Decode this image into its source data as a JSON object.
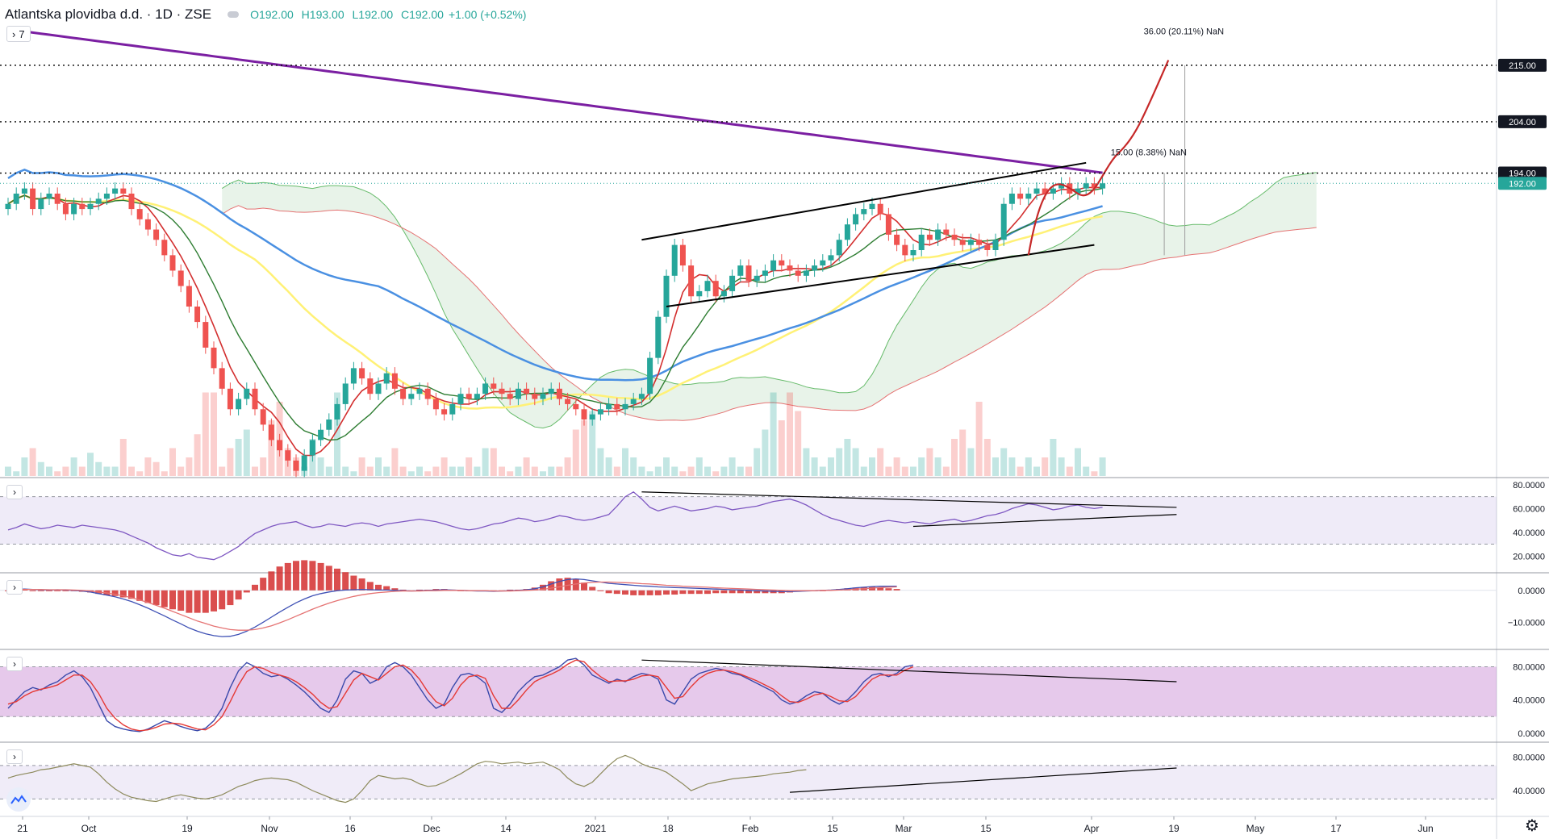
{
  "legend": {
    "symbol": "Atlantska plovidba d.d. · 1D · ZSE",
    "open": "O192.00",
    "high": "H193.00",
    "low": "L192.00",
    "close": "C192.00",
    "change": "+1.00 (+0.52%)"
  },
  "indicator_toggle": {
    "label": "7"
  },
  "colors": {
    "up": "#26a69a",
    "down": "#ef5350",
    "ma200": "#7b1fa2",
    "ma100": "#4a90e2",
    "ma50": "#fff176",
    "ema_fast": "#d32f2f",
    "ema_slow": "#2e7d32",
    "price_line": "#26a69a",
    "projection": "#c62828"
  },
  "chart_data": [
    {
      "type": "candlestick",
      "pane": "price",
      "title": "Atlantska plovidba d.d. · 1D · ZSE",
      "x_ticks": [
        "21",
        "Oct",
        "19",
        "Nov",
        "16",
        "Dec",
        "14",
        "2021",
        "18",
        "Feb",
        "15",
        "Mar",
        "15",
        "Apr",
        "19",
        "May",
        "17",
        "Jun"
      ],
      "price_labels": [
        {
          "label": "215.00",
          "value": 215,
          "style": "dotted"
        },
        {
          "label": "204.00",
          "value": 204,
          "style": "dotted"
        },
        {
          "label": "194.00",
          "value": 194,
          "style": "dotted"
        },
        {
          "label": "192.00",
          "value": 192,
          "style": "last-price"
        }
      ],
      "annotations": [
        {
          "text": "36.00 (20.11%) NaN",
          "target": 215
        },
        {
          "text": "15.00 (8.38%) NaN",
          "target": 194
        }
      ],
      "ylim": [
        135,
        223
      ],
      "close": [
        188,
        190,
        191,
        187,
        189,
        190,
        188,
        186,
        188,
        187,
        188,
        189,
        190,
        191,
        190,
        187,
        185,
        183,
        181,
        178,
        175,
        172,
        168,
        165,
        160,
        156,
        152,
        148,
        150,
        152,
        148,
        145,
        142,
        140,
        138,
        136,
        139,
        142,
        144,
        146,
        149,
        153,
        156,
        154,
        151,
        153,
        155,
        152,
        150,
        151,
        152,
        150,
        148,
        147,
        149,
        151,
        150,
        151,
        153,
        152,
        151,
        150,
        152,
        151,
        150,
        151,
        152,
        150,
        149,
        148,
        146,
        147,
        148,
        149,
        148,
        149,
        150,
        151,
        158,
        166,
        174,
        180,
        176,
        170,
        171,
        173,
        170,
        171,
        174,
        176,
        173,
        174,
        175,
        177,
        176,
        175,
        174,
        175,
        176,
        177,
        178,
        181,
        184,
        186,
        187,
        188,
        186,
        182,
        180,
        178,
        179,
        182,
        181,
        183,
        182,
        181,
        180,
        181,
        180,
        179,
        181,
        188,
        190,
        189,
        190,
        191,
        190,
        191,
        192,
        190,
        191,
        192,
        191,
        192
      ],
      "volume_relative": [
        0.1,
        0.05,
        0.2,
        0.3,
        0.15,
        0.1,
        0.05,
        0.1,
        0.2,
        0.1,
        0.25,
        0.15,
        0.1,
        0.1,
        0.4,
        0.1,
        0.05,
        0.2,
        0.15,
        0.05,
        0.3,
        0.1,
        0.2,
        0.45,
        0.9,
        0.9,
        0.1,
        0.3,
        0.4,
        0.5,
        0.1,
        0.2,
        0.6,
        0.8,
        0.3,
        0.2,
        0.1,
        0.4,
        0.2,
        0.1,
        0.9,
        0.1,
        0.05,
        0.2,
        0.1,
        0.2,
        0.1,
        0.3,
        0.1,
        0.05,
        0.1,
        0.05,
        0.1,
        0.2,
        0.1,
        0.1,
        0.2,
        0.1,
        0.3,
        0.3,
        0.1,
        0.05,
        0.1,
        0.2,
        0.1,
        0.05,
        0.1,
        0.1,
        0.2,
        0.5,
        0.6,
        0.7,
        0.3,
        0.2,
        0.1,
        0.3,
        0.2,
        0.1,
        0.05,
        0.1,
        0.2,
        0.1,
        0.05,
        0.1,
        0.2,
        0.1,
        0.05,
        0.1,
        0.2,
        0.1,
        0.1,
        0.3,
        0.5,
        0.9,
        0.6,
        0.9,
        0.7,
        0.3,
        0.2,
        0.1,
        0.2,
        0.3,
        0.4,
        0.3,
        0.1,
        0.2,
        0.3,
        0.1,
        0.2,
        0.1,
        0.1,
        0.2,
        0.3,
        0.2,
        0.1,
        0.4,
        0.5,
        0.3,
        0.8,
        0.4,
        0.2,
        0.3,
        0.2,
        0.1,
        0.2,
        0.1,
        0.2,
        0.4,
        0.2,
        0.1,
        0.3,
        0.1,
        0.05,
        0.2
      ]
    },
    {
      "type": "line",
      "pane": "rsi",
      "y_ticks": [
        "80.0000",
        "60.0000",
        "40.0000",
        "20.0000"
      ],
      "ylim": [
        10,
        82
      ],
      "bands": [
        30,
        70
      ],
      "values": [
        42,
        44,
        47,
        45,
        43,
        44,
        46,
        45,
        44,
        46,
        45,
        44,
        43,
        42,
        40,
        37,
        34,
        31,
        27,
        24,
        21,
        20,
        22,
        19,
        18,
        17,
        20,
        24,
        28,
        34,
        39,
        42,
        45,
        47,
        48,
        49,
        46,
        44,
        45,
        47,
        46,
        45,
        47,
        48,
        47,
        45,
        47,
        48,
        49,
        50,
        51,
        50,
        49,
        47,
        45,
        43,
        42,
        43,
        45,
        47,
        48,
        50,
        52,
        51,
        49,
        50,
        52,
        54,
        53,
        51,
        50,
        51,
        53,
        55,
        62,
        70,
        74,
        68,
        61,
        58,
        60,
        62,
        60,
        58,
        59,
        60,
        62,
        61,
        59,
        60,
        61,
        62,
        64,
        66,
        67,
        68,
        66,
        63,
        59,
        55,
        52,
        50,
        48,
        46,
        45,
        47,
        49,
        50,
        49,
        48,
        49,
        48,
        47,
        49,
        50,
        51,
        49,
        50,
        52,
        54,
        55,
        57,
        60,
        62,
        64,
        63,
        61,
        59,
        60,
        62,
        63,
        61,
        60,
        61
      ]
    },
    {
      "type": "line",
      "pane": "macd",
      "y_ticks": [
        "0.0000",
        "−10.0000"
      ],
      "ylim": [
        -17,
        4
      ],
      "macd": [
        0.2,
        0.3,
        0.4,
        0.3,
        0.2,
        0.1,
        0.2,
        0.1,
        0.0,
        -0.2,
        -0.5,
        -1,
        -1.5,
        -2,
        -2.7,
        -3.5,
        -4.5,
        -5.6,
        -6.8,
        -8,
        -9.3,
        -10.5,
        -11.8,
        -12.8,
        -13.6,
        -14.2,
        -14.5,
        -14.4,
        -13.8,
        -12.8,
        -11.5,
        -10,
        -8.4,
        -6.8,
        -5.3,
        -3.9,
        -2.7,
        -1.7,
        -1,
        -0.5,
        -0.1,
        0.1,
        0.2,
        0.3,
        0.2,
        0.1,
        0.1,
        0.0,
        -0.1,
        -0.2,
        -0.1,
        0.0,
        0.1,
        0.2,
        0.1,
        0.0,
        -0.1,
        -0.2,
        -0.2,
        -0.3,
        -0.2,
        -0.1,
        0.0,
        0.2,
        0.5,
        1.1,
        2.0,
        2.8,
        3.4,
        3.6,
        3.4,
        3.0,
        2.6,
        2.2,
        2.0,
        1.8,
        1.6,
        1.4,
        1.3,
        1.1,
        1.0,
        0.9,
        0.8,
        0.7,
        0.6,
        0.5,
        0.4,
        0.3,
        0.2,
        0.1,
        0.0,
        -0.1,
        -0.2,
        -0.3,
        -0.4,
        -0.4,
        -0.3,
        -0.2,
        -0.1,
        0.0,
        0.1,
        0.3,
        0.5,
        0.8,
        1.0,
        1.2,
        1.3,
        1.3,
        1.3
      ],
      "signal": [
        0.3,
        0.3,
        0.3,
        0.3,
        0.3,
        0.2,
        0.2,
        0.2,
        0.1,
        0.0,
        -0.2,
        -0.5,
        -0.8,
        -1.2,
        -1.7,
        -2.3,
        -3.0,
        -3.8,
        -4.7,
        -5.6,
        -6.6,
        -7.6,
        -8.6,
        -9.6,
        -10.4,
        -11.2,
        -11.8,
        -12.3,
        -12.5,
        -12.5,
        -12.3,
        -11.8,
        -11.1,
        -10.2,
        -9.2,
        -8.1,
        -7.0,
        -5.9,
        -4.9,
        -4.0,
        -3.2,
        -2.5,
        -1.9,
        -1.4,
        -1.0,
        -0.7,
        -0.5,
        -0.3,
        -0.2,
        -0.2,
        -0.2,
        -0.1,
        -0.1,
        0.0,
        0.0,
        0.0,
        -0.1,
        -0.1,
        -0.1,
        -0.2,
        -0.2,
        -0.2,
        -0.1,
        0.0,
        0.1,
        0.3,
        0.7,
        1.1,
        1.6,
        2.0,
        2.3,
        2.5,
        2.6,
        2.6,
        2.5,
        2.4,
        2.3,
        2.1,
        2.0,
        1.8,
        1.6,
        1.5,
        1.3,
        1.2,
        1.1,
        1.0,
        0.8,
        0.7,
        0.6,
        0.5,
        0.4,
        0.3,
        0.2,
        0.1,
        0.0,
        -0.1,
        -0.1,
        -0.1,
        -0.1,
        0.0,
        0.0,
        0.1,
        0.2,
        0.4,
        0.5,
        0.7,
        0.9,
        1.0,
        1.1
      ]
    },
    {
      "type": "line",
      "pane": "stochastic",
      "y_ticks": [
        "80.0000",
        "40.0000",
        "0.0000"
      ],
      "ylim": [
        -5,
        95
      ],
      "bands": [
        20,
        80
      ],
      "k": [
        30,
        40,
        50,
        55,
        52,
        58,
        62,
        70,
        75,
        68,
        55,
        35,
        15,
        8,
        5,
        3,
        2,
        5,
        10,
        15,
        12,
        8,
        5,
        3,
        6,
        15,
        30,
        55,
        75,
        85,
        80,
        72,
        68,
        70,
        65,
        58,
        50,
        40,
        30,
        25,
        40,
        65,
        75,
        72,
        60,
        65,
        80,
        85,
        80,
        70,
        55,
        40,
        30,
        35,
        55,
        70,
        72,
        68,
        60,
        30,
        25,
        35,
        50,
        60,
        68,
        70,
        75,
        80,
        88,
        90,
        82,
        70,
        65,
        60,
        65,
        62,
        68,
        72,
        70,
        65,
        40,
        35,
        50,
        65,
        72,
        75,
        78,
        76,
        72,
        70,
        65,
        60,
        55,
        50,
        40,
        35,
        38,
        45,
        50,
        48,
        40,
        35,
        40,
        50,
        62,
        70,
        72,
        68,
        72,
        80,
        82
      ],
      "d": [
        35,
        38,
        45,
        50,
        53,
        55,
        58,
        64,
        70,
        70,
        62,
        48,
        30,
        18,
        10,
        5,
        3,
        4,
        7,
        11,
        12,
        11,
        8,
        5,
        4,
        10,
        20,
        38,
        58,
        74,
        80,
        78,
        73,
        70,
        67,
        62,
        55,
        47,
        37,
        30,
        32,
        48,
        64,
        72,
        68,
        64,
        72,
        80,
        82,
        76,
        65,
        50,
        38,
        33,
        42,
        58,
        68,
        70,
        66,
        45,
        30,
        30,
        40,
        52,
        62,
        67,
        71,
        76,
        83,
        88,
        86,
        76,
        68,
        62,
        63,
        63,
        65,
        69,
        70,
        68,
        55,
        42,
        44,
        56,
        66,
        72,
        75,
        76,
        74,
        71,
        67,
        63,
        58,
        53,
        45,
        38,
        37,
        41,
        46,
        48,
        44,
        39,
        38,
        44,
        55,
        65,
        70,
        70,
        70,
        76,
        80
      ]
    },
    {
      "type": "line",
      "pane": "oscillator",
      "y_ticks": [
        "80.0000",
        "40.0000"
      ],
      "ylim": [
        15,
        92
      ],
      "bands": [
        30,
        70
      ],
      "values": [
        55,
        58,
        60,
        62,
        65,
        66,
        68,
        70,
        72,
        70,
        68,
        60,
        50,
        42,
        36,
        32,
        30,
        28,
        27,
        30,
        33,
        35,
        33,
        31,
        30,
        32,
        35,
        40,
        45,
        48,
        52,
        54,
        55,
        54,
        53,
        50,
        45,
        40,
        36,
        32,
        28,
        26,
        30,
        40,
        52,
        58,
        56,
        54,
        55,
        53,
        48,
        45,
        46,
        50,
        55,
        60,
        66,
        72,
        75,
        74,
        72,
        73,
        74,
        72,
        73,
        74,
        70,
        65,
        55,
        48,
        45,
        50,
        60,
        70,
        78,
        82,
        78,
        72,
        68,
        66,
        62,
        55,
        48,
        40,
        44,
        48,
        50,
        52,
        54,
        55,
        56,
        57,
        58,
        60,
        61,
        62,
        64,
        65
      ]
    }
  ]
}
